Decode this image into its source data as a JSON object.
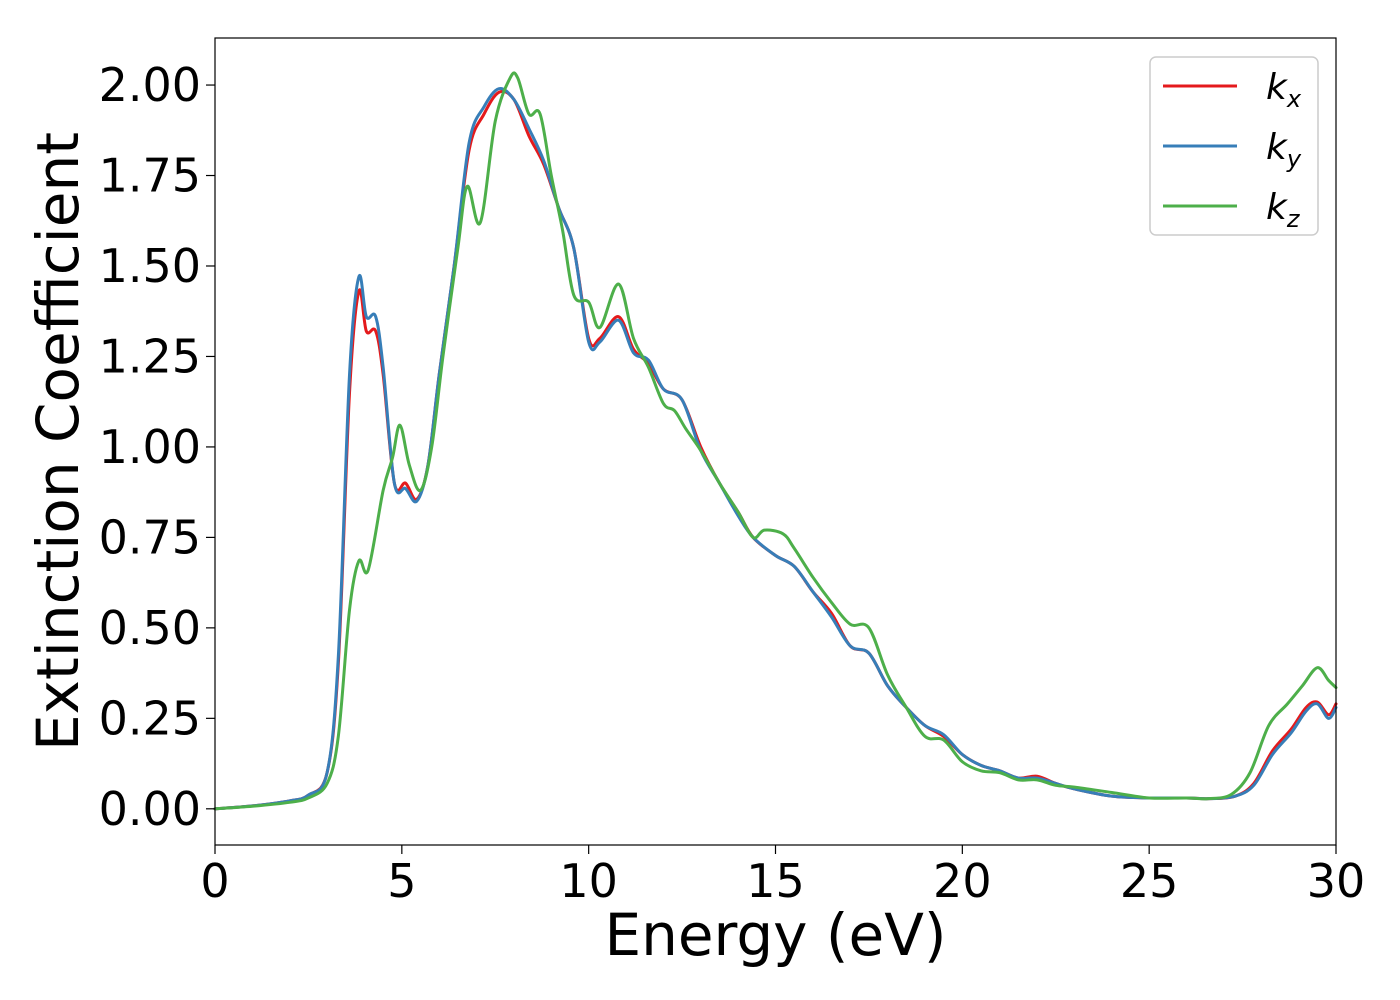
{
  "chart_data": {
    "type": "line",
    "title": "",
    "xlabel": "Energy (eV)",
    "ylabel": "Extinction Coefficient",
    "xlim": [
      0,
      30
    ],
    "ylim": [
      -0.1,
      2.13
    ],
    "xticks": [
      0,
      5,
      10,
      15,
      20,
      25,
      30
    ],
    "xtick_labels": [
      "0",
      "5",
      "10",
      "15",
      "20",
      "25",
      "30"
    ],
    "yticks": [
      0,
      0.25,
      0.5,
      0.75,
      1.0,
      1.25,
      1.5,
      1.75,
      2.0
    ],
    "ytick_labels": [
      "0.00",
      "0.25",
      "0.50",
      "0.75",
      "1.00",
      "1.25",
      "1.50",
      "1.75",
      "2.00"
    ],
    "grid": false,
    "legend_position": "top-right",
    "series": [
      {
        "name": "k_x",
        "legend_main": "k",
        "legend_sub": "x",
        "color": "#e41a1c",
        "points": [
          [
            0,
            0.0
          ],
          [
            1,
            0.008
          ],
          [
            2,
            0.022
          ],
          [
            2.5,
            0.038
          ],
          [
            3.0,
            0.1
          ],
          [
            3.3,
            0.4
          ],
          [
            3.6,
            1.15
          ],
          [
            3.85,
            1.43
          ],
          [
            4.05,
            1.32
          ],
          [
            4.3,
            1.32
          ],
          [
            4.5,
            1.2
          ],
          [
            4.8,
            0.9
          ],
          [
            5.1,
            0.9
          ],
          [
            5.4,
            0.855
          ],
          [
            5.7,
            0.95
          ],
          [
            6.0,
            1.2
          ],
          [
            6.4,
            1.5
          ],
          [
            6.8,
            1.82
          ],
          [
            7.2,
            1.92
          ],
          [
            7.6,
            1.98
          ],
          [
            8.0,
            1.96
          ],
          [
            8.4,
            1.86
          ],
          [
            8.8,
            1.78
          ],
          [
            9.2,
            1.66
          ],
          [
            9.6,
            1.55
          ],
          [
            10.0,
            1.3
          ],
          [
            10.3,
            1.3
          ],
          [
            10.8,
            1.36
          ],
          [
            11.2,
            1.27
          ],
          [
            11.6,
            1.23
          ],
          [
            12.0,
            1.16
          ],
          [
            12.5,
            1.13
          ],
          [
            13.0,
            1.0
          ],
          [
            13.5,
            0.9
          ],
          [
            14.0,
            0.82
          ],
          [
            14.4,
            0.75
          ],
          [
            15.0,
            0.7
          ],
          [
            15.5,
            0.67
          ],
          [
            16.0,
            0.6
          ],
          [
            16.5,
            0.54
          ],
          [
            17.0,
            0.45
          ],
          [
            17.5,
            0.43
          ],
          [
            18.0,
            0.34
          ],
          [
            18.5,
            0.28
          ],
          [
            19.0,
            0.23
          ],
          [
            19.5,
            0.2
          ],
          [
            20.0,
            0.15
          ],
          [
            20.5,
            0.12
          ],
          [
            21.0,
            0.105
          ],
          [
            21.5,
            0.085
          ],
          [
            22.0,
            0.09
          ],
          [
            22.5,
            0.07
          ],
          [
            23.0,
            0.055
          ],
          [
            24.0,
            0.035
          ],
          [
            25.0,
            0.03
          ],
          [
            26.0,
            0.03
          ],
          [
            26.6,
            0.028
          ],
          [
            27.3,
            0.035
          ],
          [
            27.8,
            0.07
          ],
          [
            28.3,
            0.16
          ],
          [
            28.8,
            0.22
          ],
          [
            29.2,
            0.28
          ],
          [
            29.5,
            0.295
          ],
          [
            29.8,
            0.26
          ],
          [
            30.0,
            0.29
          ]
        ]
      },
      {
        "name": "k_y",
        "legend_main": "k",
        "legend_sub": "y",
        "color": "#377eb8",
        "points": [
          [
            0,
            0.0
          ],
          [
            1,
            0.008
          ],
          [
            2,
            0.022
          ],
          [
            2.5,
            0.038
          ],
          [
            3.0,
            0.1
          ],
          [
            3.3,
            0.42
          ],
          [
            3.6,
            1.2
          ],
          [
            3.85,
            1.47
          ],
          [
            4.05,
            1.36
          ],
          [
            4.3,
            1.36
          ],
          [
            4.5,
            1.22
          ],
          [
            4.8,
            0.9
          ],
          [
            5.1,
            0.885
          ],
          [
            5.4,
            0.85
          ],
          [
            5.7,
            0.95
          ],
          [
            6.0,
            1.2
          ],
          [
            6.4,
            1.5
          ],
          [
            6.8,
            1.84
          ],
          [
            7.2,
            1.94
          ],
          [
            7.6,
            1.99
          ],
          [
            8.0,
            1.96
          ],
          [
            8.4,
            1.88
          ],
          [
            8.8,
            1.79
          ],
          [
            9.2,
            1.66
          ],
          [
            9.6,
            1.55
          ],
          [
            10.0,
            1.29
          ],
          [
            10.3,
            1.29
          ],
          [
            10.8,
            1.35
          ],
          [
            11.2,
            1.26
          ],
          [
            11.6,
            1.24
          ],
          [
            12.0,
            1.16
          ],
          [
            12.5,
            1.13
          ],
          [
            13.0,
            0.99
          ],
          [
            13.5,
            0.9
          ],
          [
            14.0,
            0.81
          ],
          [
            14.4,
            0.75
          ],
          [
            15.0,
            0.7
          ],
          [
            15.5,
            0.67
          ],
          [
            16.0,
            0.6
          ],
          [
            16.5,
            0.53
          ],
          [
            17.0,
            0.45
          ],
          [
            17.5,
            0.43
          ],
          [
            18.0,
            0.34
          ],
          [
            18.5,
            0.28
          ],
          [
            19.0,
            0.23
          ],
          [
            19.5,
            0.205
          ],
          [
            20.0,
            0.15
          ],
          [
            20.5,
            0.12
          ],
          [
            21.0,
            0.105
          ],
          [
            21.5,
            0.085
          ],
          [
            22.0,
            0.085
          ],
          [
            22.5,
            0.07
          ],
          [
            23.0,
            0.055
          ],
          [
            24.0,
            0.035
          ],
          [
            25.0,
            0.03
          ],
          [
            26.0,
            0.03
          ],
          [
            26.6,
            0.028
          ],
          [
            27.3,
            0.035
          ],
          [
            27.8,
            0.065
          ],
          [
            28.3,
            0.15
          ],
          [
            28.8,
            0.21
          ],
          [
            29.2,
            0.27
          ],
          [
            29.5,
            0.29
          ],
          [
            29.8,
            0.25
          ],
          [
            30.0,
            0.28
          ]
        ]
      },
      {
        "name": "k_z",
        "legend_main": "k",
        "legend_sub": "z",
        "color": "#4daf4a",
        "points": [
          [
            0,
            0.0
          ],
          [
            1,
            0.007
          ],
          [
            2,
            0.018
          ],
          [
            2.5,
            0.03
          ],
          [
            3.0,
            0.07
          ],
          [
            3.3,
            0.2
          ],
          [
            3.6,
            0.55
          ],
          [
            3.85,
            0.685
          ],
          [
            4.1,
            0.66
          ],
          [
            4.5,
            0.88
          ],
          [
            4.75,
            0.97
          ],
          [
            4.95,
            1.06
          ],
          [
            5.2,
            0.95
          ],
          [
            5.5,
            0.88
          ],
          [
            5.8,
            1.0
          ],
          [
            6.1,
            1.25
          ],
          [
            6.5,
            1.55
          ],
          [
            6.75,
            1.72
          ],
          [
            7.1,
            1.62
          ],
          [
            7.5,
            1.9
          ],
          [
            7.9,
            2.02
          ],
          [
            8.1,
            2.02
          ],
          [
            8.4,
            1.92
          ],
          [
            8.7,
            1.92
          ],
          [
            9.0,
            1.75
          ],
          [
            9.3,
            1.6
          ],
          [
            9.6,
            1.42
          ],
          [
            10.0,
            1.4
          ],
          [
            10.3,
            1.33
          ],
          [
            10.8,
            1.45
          ],
          [
            11.2,
            1.3
          ],
          [
            11.6,
            1.22
          ],
          [
            12.0,
            1.12
          ],
          [
            12.3,
            1.1
          ],
          [
            12.6,
            1.05
          ],
          [
            13.0,
            0.99
          ],
          [
            13.5,
            0.9
          ],
          [
            14.0,
            0.82
          ],
          [
            14.4,
            0.75
          ],
          [
            14.7,
            0.77
          ],
          [
            15.2,
            0.76
          ],
          [
            15.5,
            0.72
          ],
          [
            16.0,
            0.64
          ],
          [
            16.5,
            0.57
          ],
          [
            17.0,
            0.51
          ],
          [
            17.5,
            0.5
          ],
          [
            18.0,
            0.37
          ],
          [
            18.5,
            0.28
          ],
          [
            19.0,
            0.2
          ],
          [
            19.5,
            0.19
          ],
          [
            20.0,
            0.13
          ],
          [
            20.5,
            0.105
          ],
          [
            21.0,
            0.1
          ],
          [
            21.5,
            0.08
          ],
          [
            22.0,
            0.08
          ],
          [
            22.5,
            0.065
          ],
          [
            23.0,
            0.06
          ],
          [
            24.0,
            0.045
          ],
          [
            25.0,
            0.03
          ],
          [
            26.0,
            0.03
          ],
          [
            26.6,
            0.028
          ],
          [
            27.2,
            0.04
          ],
          [
            27.7,
            0.1
          ],
          [
            28.2,
            0.23
          ],
          [
            28.7,
            0.29
          ],
          [
            29.1,
            0.34
          ],
          [
            29.5,
            0.39
          ],
          [
            29.8,
            0.355
          ],
          [
            30.0,
            0.335
          ]
        ]
      }
    ]
  }
}
